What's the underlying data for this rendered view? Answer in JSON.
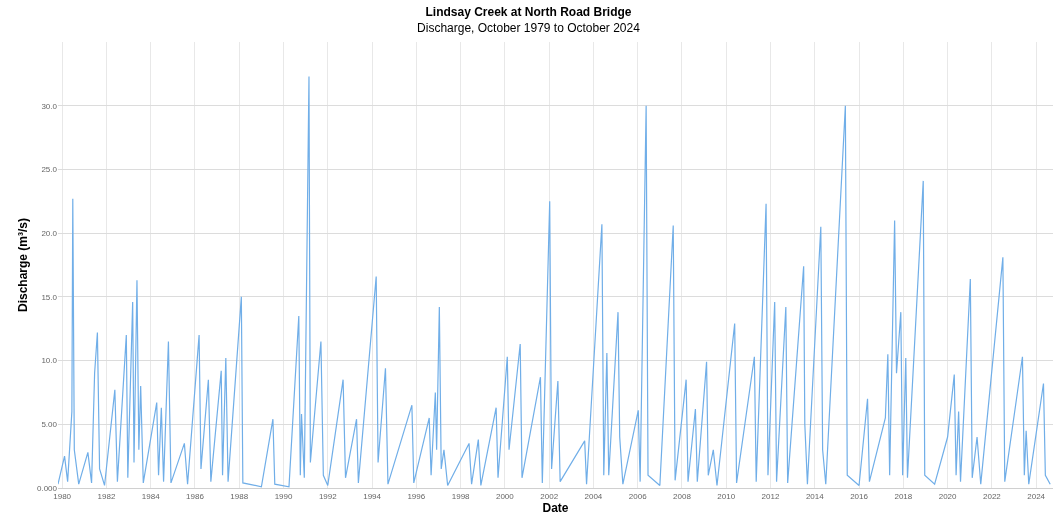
{
  "chart_data": {
    "type": "line",
    "title": "Lindsay Creek at North Road Bridge",
    "subtitle": "Discharge, October 1979 to October 2024",
    "xlabel": "Date",
    "ylabel": "Discharge (m³/s)",
    "x": [
      "1979-10-25",
      "1980-02-10",
      "1980-04-01",
      "1980-06-10",
      "1980-06-25",
      "1980-07-20",
      "1980-10-01",
      "1981-03-01",
      "1981-05-01",
      "1981-06-20",
      "1981-08-05",
      "1981-09-10",
      "1981-12-01",
      "1982-05-20",
      "1982-07-01",
      "1982-11-25",
      "1982-12-20",
      "1983-03-10",
      "1983-04-01",
      "1983-05-20",
      "1983-06-20",
      "1983-07-20",
      "1983-09-01",
      "1984-04-10",
      "1984-05-10",
      "1984-06-25",
      "1984-08-01",
      "1984-10-20",
      "1984-12-01",
      "1985-07-10",
      "1985-09-01",
      "1986-03-10",
      "1986-04-10",
      "1986-08-10",
      "1986-09-20",
      "1987-03-10",
      "1987-04-01",
      "1987-05-25",
      "1987-07-01",
      "1988-02-05",
      "1988-03-01",
      "1989-01-01",
      "1989-07-10",
      "1989-08-10",
      "1990-04-01",
      "1990-09-10",
      "1990-10-05",
      "1990-10-25",
      "1990-12-10",
      "1991-02-25",
      "1991-03-20",
      "1991-09-10",
      "1991-10-20",
      "1992-01-01",
      "1992-09-10",
      "1992-10-20",
      "1993-04-20",
      "1993-05-20",
      "1994-03-10",
      "1994-04-10",
      "1994-08-10",
      "1994-09-20",
      "1995-10-20",
      "1995-11-20",
      "1996-08-01",
      "1996-09-01",
      "1996-11-10",
      "1996-12-01",
      "1997-01-15",
      "1997-02-15",
      "1997-04-01",
      "1997-06-01",
      "1998-05-20",
      "1998-07-01",
      "1998-10-20",
      "1998-12-01",
      "1999-08-10",
      "1999-09-10",
      "2000-02-10",
      "2000-03-10",
      "2000-09-10",
      "2000-10-10",
      "2001-08-10",
      "2001-09-10",
      "2002-01-10",
      "2002-02-10",
      "2002-05-25",
      "2002-07-01",
      "2003-08-10",
      "2003-09-10",
      "2004-05-20",
      "2004-06-20",
      "2004-08-10",
      "2004-09-10",
      "2005-02-10",
      "2005-03-10",
      "2005-05-01",
      "2006-01-10",
      "2006-02-10",
      "2006-05-20",
      "2006-06-20",
      "2007-01-01",
      "2007-08-10",
      "2007-09-10",
      "2008-03-10",
      "2008-04-10",
      "2008-08-10",
      "2008-09-10",
      "2009-02-10",
      "2009-03-10",
      "2009-06-01",
      "2009-08-01",
      "2010-05-20",
      "2010-06-20",
      "2011-04-10",
      "2011-05-10",
      "2011-10-20",
      "2011-11-20",
      "2012-03-10",
      "2012-04-10",
      "2012-09-10",
      "2012-10-10",
      "2013-07-01",
      "2013-07-20",
      "2013-09-01",
      "2014-04-10",
      "2014-05-10",
      "2014-07-01",
      "2015-05-20",
      "2015-06-20",
      "2016-01-01",
      "2016-05-20",
      "2016-06-20",
      "2017-03-10",
      "2017-04-20",
      "2017-05-20",
      "2017-08-10",
      "2017-09-10",
      "2017-11-20",
      "2017-12-20",
      "2018-02-10",
      "2018-03-10",
      "2018-11-25",
      "2018-12-20",
      "2019-06-01",
      "2020-01-01",
      "2020-04-20",
      "2020-05-20",
      "2020-07-01",
      "2020-08-01",
      "2021-01-10",
      "2021-02-10",
      "2021-05-01",
      "2021-07-01",
      "2022-07-01",
      "2022-08-01",
      "2023-05-20",
      "2023-06-20",
      "2023-07-20",
      "2023-09-01",
      "2024-05-01",
      "2024-06-01",
      "2024-08-20"
    ],
    "series": [
      {
        "color": "#70aee8",
        "values": [
          0.3,
          2.5,
          0.5,
          6.0,
          22.7,
          3.0,
          0.3,
          2.8,
          0.4,
          9.0,
          12.2,
          1.5,
          0.2,
          7.7,
          0.5,
          12.0,
          0.8,
          14.6,
          2.0,
          16.3,
          3.0,
          8.0,
          0.4,
          6.7,
          1.0,
          6.3,
          0.5,
          11.5,
          0.4,
          3.5,
          0.3,
          12.0,
          1.5,
          8.5,
          0.5,
          9.2,
          1.0,
          10.2,
          0.5,
          15.0,
          0.4,
          0.1,
          5.4,
          0.3,
          0.1,
          13.5,
          1.0,
          5.8,
          0.8,
          32.3,
          2.0,
          11.5,
          1.0,
          0.2,
          8.5,
          0.8,
          5.4,
          0.4,
          16.6,
          2.0,
          9.4,
          0.3,
          6.5,
          0.4,
          5.5,
          1.0,
          7.5,
          3.0,
          14.2,
          1.5,
          3.0,
          0.2,
          3.5,
          0.3,
          3.8,
          0.2,
          6.3,
          0.8,
          10.3,
          3.0,
          11.3,
          0.8,
          8.7,
          0.4,
          22.5,
          1.5,
          8.4,
          0.5,
          3.7,
          0.3,
          20.7,
          1.0,
          10.6,
          1.0,
          13.8,
          4.0,
          0.3,
          6.1,
          0.5,
          30.0,
          1.0,
          0.2,
          20.6,
          0.6,
          8.5,
          0.5,
          6.2,
          0.5,
          9.9,
          1.0,
          3.0,
          0.2,
          12.9,
          0.4,
          10.3,
          0.5,
          22.3,
          1.0,
          14.6,
          0.5,
          14.2,
          0.4,
          17.4,
          5.0,
          0.3,
          20.5,
          3.0,
          0.3,
          30.0,
          1.0,
          0.2,
          7.0,
          0.5,
          5.5,
          10.5,
          1.0,
          21.0,
          9.0,
          13.8,
          1.0,
          10.2,
          0.8,
          24.1,
          1.0,
          0.3,
          4.0,
          8.9,
          1.0,
          6.0,
          0.5,
          16.4,
          0.8,
          4.0,
          0.3,
          18.1,
          0.5,
          10.3,
          1.0,
          4.5,
          0.3,
          8.2,
          1.0,
          0.3
        ]
      }
    ],
    "xlim": [
      "1979-10-25",
      "2024-10-05"
    ],
    "xticks": [
      "1980",
      "1982",
      "1984",
      "1986",
      "1988",
      "1990",
      "1992",
      "1994",
      "1996",
      "1998",
      "2000",
      "2002",
      "2004",
      "2006",
      "2008",
      "2010",
      "2012",
      "2014",
      "2016",
      "2018",
      "2020",
      "2022",
      "2024"
    ],
    "ylim": [
      0,
      35
    ],
    "yticks": [
      {
        "value": 0,
        "label": "0.000"
      },
      {
        "value": 5,
        "label": "5.00"
      },
      {
        "value": 10,
        "label": "10.0"
      },
      {
        "value": 15,
        "label": "15.0"
      },
      {
        "value": 20,
        "label": "20.0"
      },
      {
        "value": 25,
        "label": "25.0"
      },
      {
        "value": 30,
        "label": "30.0"
      }
    ],
    "grid": true,
    "marker": "none",
    "line_style": "solid"
  }
}
